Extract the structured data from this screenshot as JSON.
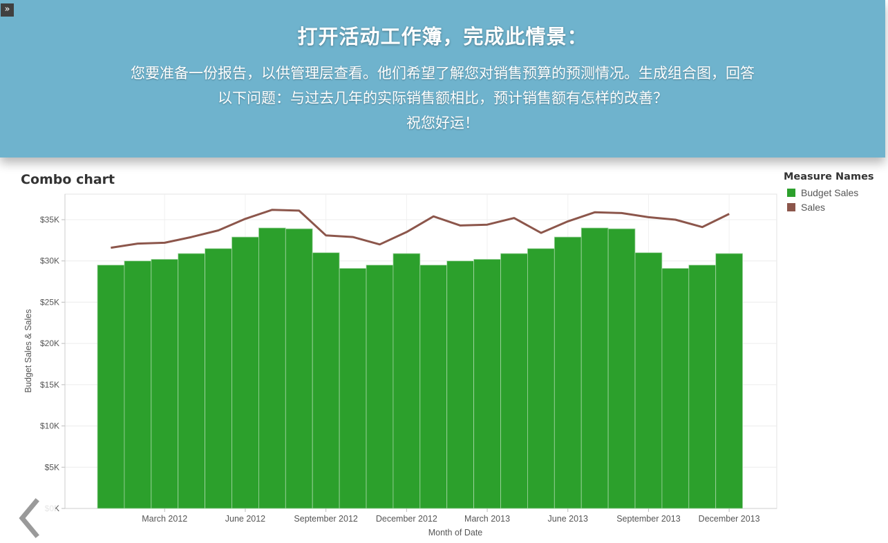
{
  "banner": {
    "expand_glyph": "»",
    "title": "打开活动工作簿，完成此情景：",
    "lines": [
      "您要准备一份报告，以供管理层查看。他们希望了解您对销售预算的预测情况。生成组合图，回答",
      "以下问题：与过去几年的实际销售额相比，预计销售额有怎样的改善？",
      "祝您好运！"
    ]
  },
  "legend": {
    "title": "Measure Names",
    "items": [
      {
        "label": "Budget Sales",
        "color": "#2ca02c"
      },
      {
        "label": "Sales",
        "color": "#8c564b"
      }
    ]
  },
  "nav": {
    "back_icon": "chevron-left-icon"
  },
  "chart_data": {
    "type": "bar+line",
    "title": "Combo chart",
    "xlabel": "Month of Date",
    "ylabel": "Budget Sales & Sales",
    "ylim": [
      0,
      38000
    ],
    "yticks": [
      0,
      5000,
      10000,
      15000,
      20000,
      25000,
      30000,
      35000
    ],
    "ytick_labels": [
      "$0K",
      "$5K",
      "$10K",
      "$15K",
      "$20K",
      "$25K",
      "$30K",
      "$35K"
    ],
    "months": [
      "2012-01",
      "2012-02",
      "2012-03",
      "2012-04",
      "2012-05",
      "2012-06",
      "2012-07",
      "2012-08",
      "2012-09",
      "2012-10",
      "2012-11",
      "2012-12",
      "2013-01",
      "2013-02",
      "2013-03",
      "2013-04",
      "2013-05",
      "2013-06",
      "2013-07",
      "2013-08",
      "2013-09",
      "2013-10",
      "2013-11",
      "2013-12"
    ],
    "xtick_labels": [
      {
        "month": "2012-03",
        "label": "March 2012"
      },
      {
        "month": "2012-06",
        "label": "June 2012"
      },
      {
        "month": "2012-09",
        "label": "September 2012"
      },
      {
        "month": "2012-12",
        "label": "December 2012"
      },
      {
        "month": "2013-03",
        "label": "March 2013"
      },
      {
        "month": "2013-06",
        "label": "June 2013"
      },
      {
        "month": "2013-09",
        "label": "September 2013"
      },
      {
        "month": "2013-12",
        "label": "December 2013"
      }
    ],
    "series": [
      {
        "name": "Budget Sales",
        "mark": "bar",
        "color": "#2ca02c",
        "values": [
          29500,
          30000,
          30200,
          30900,
          31500,
          32900,
          34000,
          33900,
          31000,
          29100,
          29500,
          30900,
          29500,
          30000,
          30200,
          30900,
          31500,
          32900,
          34000,
          33900,
          31000,
          29100,
          29500,
          30900
        ]
      },
      {
        "name": "Sales",
        "mark": "line",
        "color": "#8c564b",
        "values": [
          31600,
          32100,
          32200,
          32900,
          33700,
          35100,
          36200,
          36100,
          33100,
          32900,
          32000,
          33500,
          35400,
          34300,
          34400,
          35200,
          33400,
          34800,
          35900,
          35800,
          35300,
          35000,
          34100,
          35700
        ]
      }
    ],
    "grid": true,
    "legend_position": "right"
  }
}
